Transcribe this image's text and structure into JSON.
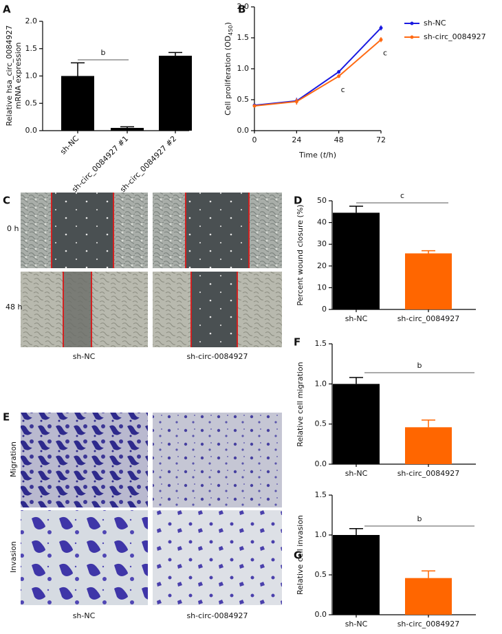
{
  "chart_data": [
    {
      "type": "bar",
      "panel": "A",
      "ylabel": [
        "Relative hsa_circ_0084927",
        "mRNA expression"
      ],
      "categories": [
        "sh-NC",
        "sh-circ_0084927 #1",
        "sh-circ_0084927 #2"
      ],
      "values": [
        1.0,
        0.05,
        1.37
      ],
      "errors": [
        0.24,
        0.02,
        0.06
      ],
      "color": "#000000",
      "ylim": [
        0,
        2
      ],
      "yticks": [
        {
          "value": 0,
          "label": "0.0"
        },
        0.5,
        {
          "value": 1,
          "label": "1.0"
        },
        1.5,
        {
          "value": 2,
          "label": "2.0"
        }
      ],
      "significance": "b"
    },
    {
      "type": "line",
      "panel": "B",
      "ylabel": [
        "Cell proliferation (OD",
        "450",
        ")"
      ],
      "xlabel": [
        "Time (",
        "t",
        "/h)"
      ],
      "x": [
        0,
        24,
        48,
        72
      ],
      "xlim": [
        0,
        72
      ],
      "xticks": [
        0,
        24,
        48,
        72
      ],
      "ylim": [
        0,
        2
      ],
      "yticks": [
        {
          "value": 0,
          "label": "0.0"
        },
        0.5,
        {
          "value": 1,
          "label": "1.0"
        },
        1.5,
        {
          "value": 2,
          "label": "2.0"
        }
      ],
      "series": [
        {
          "name": "sh-NC",
          "color": "#1a1ae0",
          "values": [
            0.41,
            0.48,
            0.95,
            1.66
          ],
          "errors": [
            0.02,
            0.05,
            0.03,
            0.04
          ]
        },
        {
          "name": "sh-circ_0084927",
          "color": "#ff6a13",
          "values": [
            0.4,
            0.47,
            0.88,
            1.47
          ],
          "errors": [
            0.02,
            0.05,
            0.03,
            0.04
          ]
        }
      ],
      "annotations": [
        "c",
        "c"
      ],
      "legend": "top-right"
    },
    {
      "type": "bar",
      "panel": "D",
      "ylabel": [
        "Percent wound closure (%)"
      ],
      "categories": [
        "sh-NC",
        "sh-circ_0084927"
      ],
      "values": [
        44.5,
        25.8
      ],
      "errors": [
        3,
        1.2
      ],
      "colors": [
        "#000000",
        "#ff6600"
      ],
      "ylim": [
        0,
        50
      ],
      "yticks": [
        0,
        10,
        20,
        30,
        40,
        50
      ],
      "significance": "c"
    },
    {
      "type": "bar",
      "panel": "F",
      "ylabel": [
        "Relative cell migration"
      ],
      "categories": [
        "sh-NC",
        "sh-circ_0084927"
      ],
      "values": [
        1.0,
        0.46
      ],
      "errors": [
        0.08,
        0.09
      ],
      "colors": [
        "#000000",
        "#ff6600"
      ],
      "ylim": [
        0,
        1.5
      ],
      "yticks": [
        {
          "value": 0,
          "label": "0.0"
        },
        0.5,
        {
          "value": 1,
          "label": "1.0"
        },
        1.5
      ],
      "significance": "b"
    },
    {
      "type": "bar",
      "panel": "G",
      "ylabel": [
        "Relative cell invasion"
      ],
      "categories": [
        "sh-NC",
        "sh-circ_0084927"
      ],
      "values": [
        1.0,
        0.46
      ],
      "errors": [
        0.08,
        0.09
      ],
      "colors": [
        "#000000",
        "#ff6600"
      ],
      "ylim": [
        0,
        1.5
      ],
      "yticks": [
        {
          "value": 0,
          "label": "0.0"
        },
        0.5,
        {
          "value": 1,
          "label": "1.0"
        },
        1.5
      ],
      "significance": "b"
    }
  ],
  "images": [
    {
      "panel": "C",
      "row_labels": [
        "0 h",
        "48 h"
      ],
      "column_labels": [
        "sh-NC",
        "sh-circ-0084927"
      ]
    },
    {
      "panel": "E",
      "row_labels": [
        "Migration",
        "Invasion"
      ],
      "column_labels": [
        "sh-NC",
        "sh-circ-0084927"
      ]
    }
  ]
}
